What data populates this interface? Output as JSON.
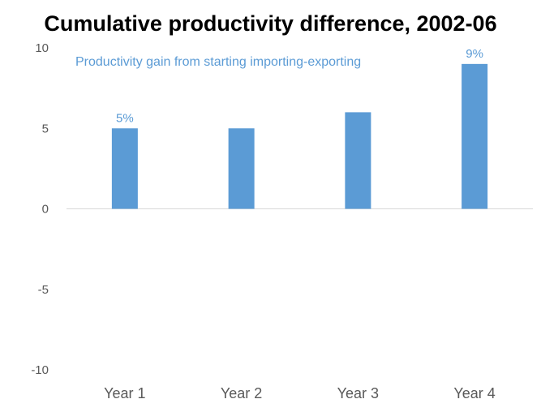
{
  "chart_data": {
    "type": "bar",
    "title": "Cumulative productivity difference, 2002-06",
    "annotation": "Productivity gain from starting importing-exporting",
    "categories": [
      "Year 1",
      "Year 2",
      "Year 3",
      "Year 4"
    ],
    "values": [
      5,
      5,
      6,
      9
    ],
    "data_labels": [
      "5%",
      "",
      "",
      "9%"
    ],
    "ylim": [
      -10,
      10
    ],
    "yticks": [
      10,
      5,
      0,
      -5,
      -10
    ],
    "xlabel": "",
    "ylabel": "",
    "grid": false,
    "legend": "none",
    "colors": {
      "bar": "#5b9bd5",
      "label": "#5b9bd5",
      "axis": "#d9d9d9",
      "tick_text": "#595959"
    }
  }
}
